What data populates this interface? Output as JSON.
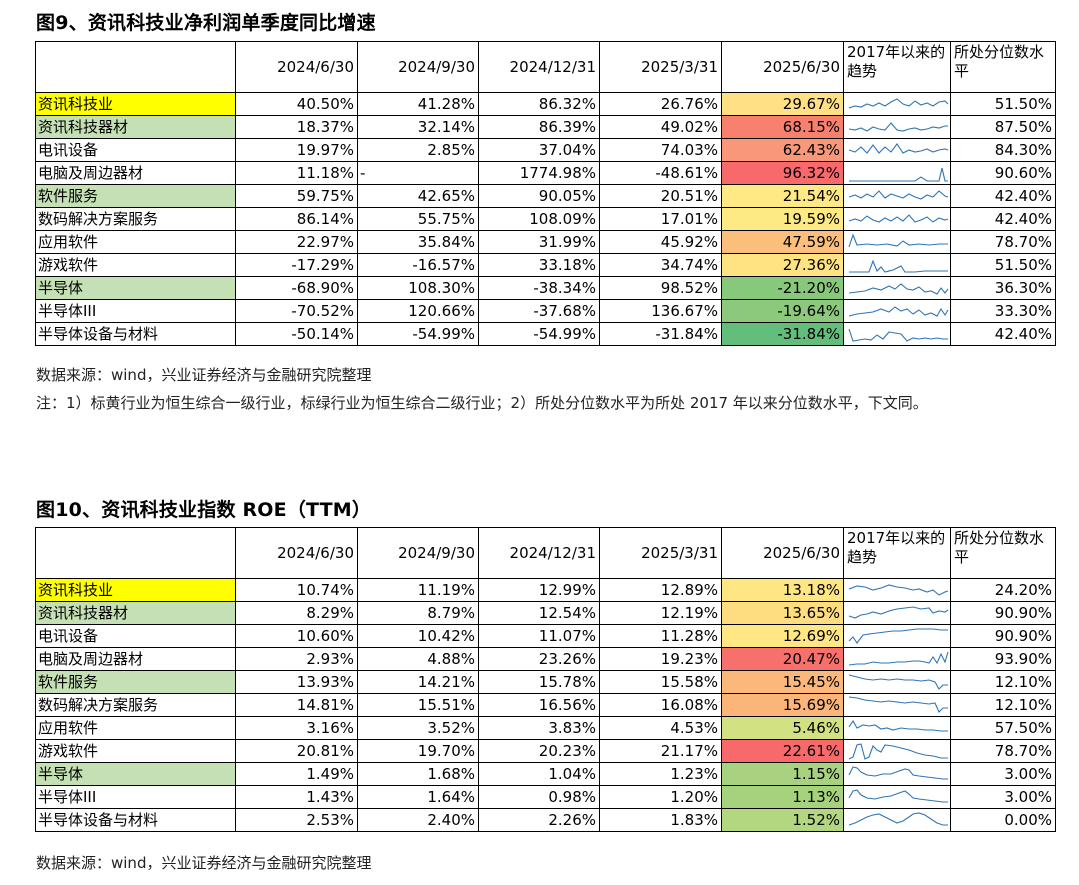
{
  "figure1": {
    "title": "图9、资讯科技业净利润单季度同比增速",
    "headers": [
      "",
      "2024/6/30",
      "2024/9/30",
      "2024/12/31",
      "2025/3/31",
      "2025/6/30",
      "2017年以来的趋势",
      "所处分位数水平"
    ],
    "rows": [
      {
        "name": "资讯科技业",
        "hl": "yellow",
        "cells": [
          "40.50%",
          "41.28%",
          "86.32%",
          "26.76%",
          "29.67%"
        ],
        "latest_color": "#ffe084",
        "pct": "51.50%"
      },
      {
        "name": "资讯科技器材",
        "hl": "green",
        "cells": [
          "18.37%",
          "32.14%",
          "86.39%",
          "49.02%",
          "68.15%"
        ],
        "latest_color": "#f8806e",
        "pct": "87.50%"
      },
      {
        "name": "电讯设备",
        "hl": "",
        "cells": [
          "19.97%",
          "2.85%",
          "37.04%",
          "74.03%",
          "62.43%"
        ],
        "latest_color": "#f9977a",
        "pct": "84.30%"
      },
      {
        "name": "电脑及周边器材",
        "hl": "",
        "cells": [
          "11.18%",
          "-",
          "1774.98%",
          "-48.61%",
          "96.32%"
        ],
        "latest_color": "#f8696b",
        "pct": "90.60%"
      },
      {
        "name": "软件服务",
        "hl": "green",
        "cells": [
          "59.75%",
          "42.65%",
          "90.05%",
          "20.51%",
          "21.54%"
        ],
        "latest_color": "#fee985",
        "pct": "42.40%"
      },
      {
        "name": "数码解决方案服务",
        "hl": "",
        "cells": [
          "86.14%",
          "55.75%",
          "108.09%",
          "17.01%",
          "19.59%"
        ],
        "latest_color": "#fdea85",
        "pct": "42.40%"
      },
      {
        "name": "应用软件",
        "hl": "",
        "cells": [
          "22.97%",
          "35.84%",
          "31.99%",
          "45.92%",
          "47.59%"
        ],
        "latest_color": "#fcbf7b",
        "pct": "78.70%"
      },
      {
        "name": "游戏软件",
        "hl": "",
        "cells": [
          "-17.29%",
          "-16.57%",
          "33.18%",
          "34.74%",
          "27.36%"
        ],
        "latest_color": "#ffe383",
        "pct": "51.50%"
      },
      {
        "name": "半导体",
        "hl": "green",
        "cells": [
          "-68.90%",
          "108.30%",
          "-38.34%",
          "98.52%",
          "-21.20%"
        ],
        "latest_color": "#88c87b",
        "pct": "36.30%"
      },
      {
        "name": "半导体III",
        "hl": "",
        "cells": [
          "-70.52%",
          "120.66%",
          "-37.68%",
          "136.67%",
          "-19.64%"
        ],
        "latest_color": "#8cc97c",
        "pct": "33.30%"
      },
      {
        "name": "半导体设备与材料",
        "hl": "",
        "cells": [
          "-50.14%",
          "-54.99%",
          "-54.99%",
          "-31.84%",
          "-31.84%"
        ],
        "latest_color": "#63be7b",
        "pct": "42.40%"
      }
    ],
    "source": "数据来源：wind，兴业证券经济与金融研究院整理",
    "note": "注：1）标黄行业为恒生综合一级行业，标绿行业为恒生综合二级行业；2）所处分位数水平为所处 2017 年以来分位数水平，下文同。"
  },
  "figure2": {
    "title": "图10、资讯科技业指数 ROE（TTM）",
    "headers": [
      "",
      "2024/6/30",
      "2024/9/30",
      "2024/12/31",
      "2025/3/31",
      "2025/6/30",
      "2017年以来的趋势",
      "所处分位数水平"
    ],
    "rows": [
      {
        "name": "资讯科技业",
        "hl": "yellow",
        "cells": [
          "10.74%",
          "11.19%",
          "12.99%",
          "12.89%",
          "13.18%"
        ],
        "latest_color": "#fee683",
        "pct": "24.20%"
      },
      {
        "name": "资讯科技器材",
        "hl": "green",
        "cells": [
          "8.29%",
          "8.79%",
          "12.54%",
          "12.19%",
          "13.65%"
        ],
        "latest_color": "#fedd81",
        "pct": "90.90%"
      },
      {
        "name": "电讯设备",
        "hl": "",
        "cells": [
          "10.60%",
          "10.42%",
          "11.07%",
          "11.28%",
          "12.69%"
        ],
        "latest_color": "#ffe884",
        "pct": "90.90%"
      },
      {
        "name": "电脑及周边器材",
        "hl": "",
        "cells": [
          "2.93%",
          "4.88%",
          "23.26%",
          "19.23%",
          "20.47%"
        ],
        "latest_color": "#f8706c",
        "pct": "93.90%"
      },
      {
        "name": "软件服务",
        "hl": "green",
        "cells": [
          "13.93%",
          "14.21%",
          "15.78%",
          "15.58%",
          "15.45%"
        ],
        "latest_color": "#fcb77a",
        "pct": "12.10%"
      },
      {
        "name": "数码解决方案服务",
        "hl": "",
        "cells": [
          "14.81%",
          "15.51%",
          "16.56%",
          "16.08%",
          "15.69%"
        ],
        "latest_color": "#fcb579",
        "pct": "12.10%"
      },
      {
        "name": "应用软件",
        "hl": "",
        "cells": [
          "3.16%",
          "3.52%",
          "3.83%",
          "4.53%",
          "5.46%"
        ],
        "latest_color": "#d2e182",
        "pct": "57.50%"
      },
      {
        "name": "游戏软件",
        "hl": "",
        "cells": [
          "20.81%",
          "19.70%",
          "20.23%",
          "21.17%",
          "22.61%"
        ],
        "latest_color": "#f8696b",
        "pct": "78.70%"
      },
      {
        "name": "半导体",
        "hl": "green",
        "cells": [
          "1.49%",
          "1.68%",
          "1.04%",
          "1.23%",
          "1.15%"
        ],
        "latest_color": "#a8d27f",
        "pct": "3.00%"
      },
      {
        "name": "半导体III",
        "hl": "",
        "cells": [
          "1.43%",
          "1.64%",
          "0.98%",
          "1.20%",
          "1.13%"
        ],
        "latest_color": "#a6d27e",
        "pct": "3.00%"
      },
      {
        "name": "半导体设备与材料",
        "hl": "",
        "cells": [
          "2.53%",
          "2.40%",
          "2.26%",
          "1.83%",
          "1.52%"
        ],
        "latest_color": "#b3d680",
        "pct": "0.00%"
      }
    ],
    "source": "数据来源：wind，兴业证券经济与金融研究院整理"
  },
  "sparkline_color": "#2e75b6"
}
